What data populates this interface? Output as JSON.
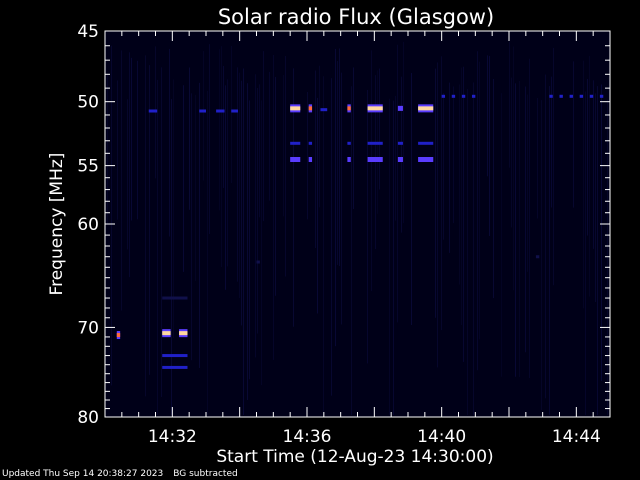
{
  "chart_data": {
    "type": "heatmap",
    "title": "Solar radio Flux (Glasgow)",
    "xlabel": "Start Time (12-Aug-23 14:30:00)",
    "ylabel": "Frequency [MHz]",
    "x_range_minutes": [
      0,
      15
    ],
    "x_ticks": [
      {
        "minute": 2,
        "label": "14:32"
      },
      {
        "minute": 6,
        "label": "14:36"
      },
      {
        "minute": 10,
        "label": "14:40"
      },
      {
        "minute": 14,
        "label": "14:44"
      }
    ],
    "y_scale": "log",
    "y_range_mhz": [
      45,
      80
    ],
    "y_inverted": true,
    "y_ticks": [
      45,
      50,
      55,
      60,
      70,
      80
    ],
    "background": "#000018",
    "colormap": [
      "#10104a",
      "#2020c8",
      "#5a3cff",
      "#ff6a3a",
      "#ffd8a0"
    ],
    "features": [
      {
        "t0": 0.35,
        "t1": 0.45,
        "f": 70.8,
        "level": 3
      },
      {
        "t0": 1.7,
        "t1": 1.95,
        "f": 70.6,
        "level": 4
      },
      {
        "t0": 2.2,
        "t1": 2.45,
        "f": 70.6,
        "level": 4
      },
      {
        "t0": 1.7,
        "t1": 2.45,
        "f": 73.0,
        "level": 1
      },
      {
        "t0": 1.7,
        "t1": 2.45,
        "f": 74.3,
        "level": 1
      },
      {
        "t0": 1.7,
        "t1": 2.45,
        "f": 67.0,
        "level": 0
      },
      {
        "t0": 1.3,
        "t1": 1.55,
        "f": 50.7,
        "level": 1
      },
      {
        "t0": 2.8,
        "t1": 3.0,
        "f": 50.7,
        "level": 1
      },
      {
        "t0": 3.3,
        "t1": 3.55,
        "f": 50.7,
        "level": 1
      },
      {
        "t0": 3.75,
        "t1": 3.95,
        "f": 50.7,
        "level": 1
      },
      {
        "t0": 5.5,
        "t1": 5.8,
        "f": 50.5,
        "level": 4
      },
      {
        "t0": 6.05,
        "t1": 6.15,
        "f": 50.5,
        "level": 3
      },
      {
        "t0": 6.4,
        "t1": 6.6,
        "f": 50.6,
        "level": 1
      },
      {
        "t0": 7.2,
        "t1": 7.3,
        "f": 50.5,
        "level": 3
      },
      {
        "t0": 7.8,
        "t1": 8.25,
        "f": 50.5,
        "level": 4
      },
      {
        "t0": 8.7,
        "t1": 8.85,
        "f": 50.5,
        "level": 2
      },
      {
        "t0": 9.3,
        "t1": 9.75,
        "f": 50.5,
        "level": 4
      },
      {
        "t0": 5.5,
        "t1": 5.8,
        "f": 53.2,
        "level": 1
      },
      {
        "t0": 6.05,
        "t1": 6.15,
        "f": 53.2,
        "level": 1
      },
      {
        "t0": 7.2,
        "t1": 7.3,
        "f": 53.2,
        "level": 1
      },
      {
        "t0": 7.8,
        "t1": 8.25,
        "f": 53.2,
        "level": 1
      },
      {
        "t0": 8.7,
        "t1": 8.85,
        "f": 53.2,
        "level": 1
      },
      {
        "t0": 9.3,
        "t1": 9.75,
        "f": 53.2,
        "level": 1
      },
      {
        "t0": 5.5,
        "t1": 5.8,
        "f": 54.5,
        "level": 2
      },
      {
        "t0": 6.05,
        "t1": 6.15,
        "f": 54.5,
        "level": 2
      },
      {
        "t0": 7.2,
        "t1": 7.3,
        "f": 54.5,
        "level": 2
      },
      {
        "t0": 7.8,
        "t1": 8.25,
        "f": 54.5,
        "level": 2
      },
      {
        "t0": 8.7,
        "t1": 8.85,
        "f": 54.5,
        "level": 2
      },
      {
        "t0": 9.3,
        "t1": 9.75,
        "f": 54.5,
        "level": 2
      },
      {
        "t0": 10.0,
        "t1": 10.1,
        "f": 49.6,
        "level": 1
      },
      {
        "t0": 10.3,
        "t1": 10.4,
        "f": 49.6,
        "level": 1
      },
      {
        "t0": 10.6,
        "t1": 10.7,
        "f": 49.6,
        "level": 1
      },
      {
        "t0": 10.9,
        "t1": 11.0,
        "f": 49.6,
        "level": 1
      },
      {
        "t0": 13.2,
        "t1": 13.3,
        "f": 49.6,
        "level": 1
      },
      {
        "t0": 13.5,
        "t1": 13.6,
        "f": 49.6,
        "level": 1
      },
      {
        "t0": 13.8,
        "t1": 13.9,
        "f": 49.6,
        "level": 1
      },
      {
        "t0": 14.1,
        "t1": 14.2,
        "f": 49.6,
        "level": 1
      },
      {
        "t0": 14.4,
        "t1": 14.5,
        "f": 49.6,
        "level": 1
      },
      {
        "t0": 14.7,
        "t1": 14.8,
        "f": 49.6,
        "level": 1
      },
      {
        "t0": 4.5,
        "t1": 4.6,
        "f": 63.5,
        "level": 0
      },
      {
        "t0": 12.8,
        "t1": 12.9,
        "f": 63.0,
        "level": 0
      }
    ]
  },
  "footer": {
    "updated": "Updated Thu Sep 14 20:38:27 2023",
    "note": "BG subtracted"
  }
}
